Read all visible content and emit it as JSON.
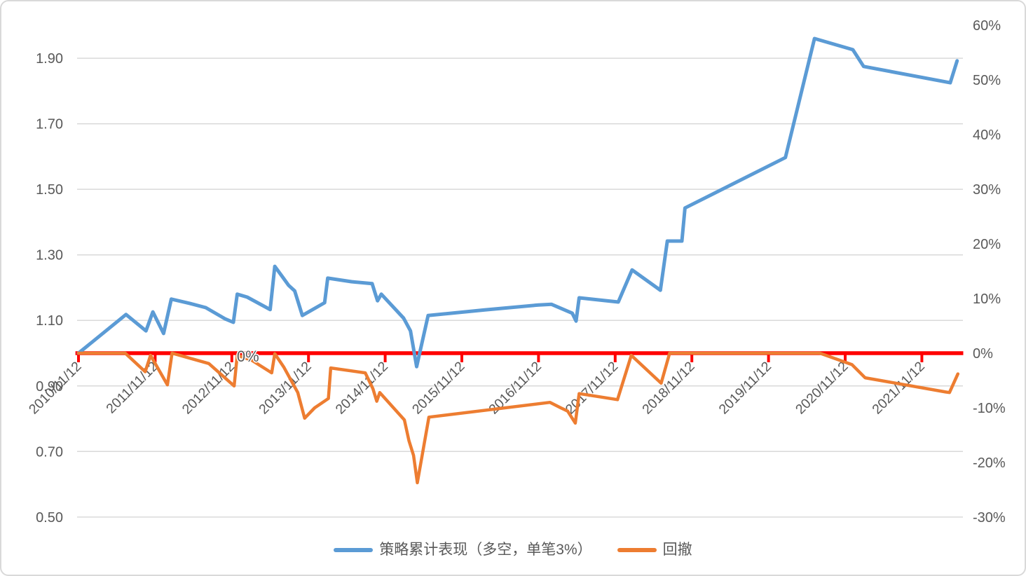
{
  "chart_data": {
    "type": "line",
    "title": "",
    "x_axis": {
      "unit": "years_from_first_tick",
      "tick_labels": [
        "2010/11/12",
        "2011/11/12",
        "2012/11/12",
        "2013/11/12",
        "2014/11/12",
        "2015/11/12",
        "2016/11/12",
        "2017/11/12",
        "2018/11/12",
        "2019/11/12",
        "2020/11/12",
        "2021/11/12"
      ],
      "axis_color": "#FF0000"
    },
    "left_axis": {
      "tick_values": [
        1.9,
        1.7,
        1.5,
        1.3,
        1.1,
        0.9,
        0.7,
        0.5
      ],
      "tick_labels": [
        "1.90",
        "1.70",
        "1.50",
        "1.30",
        "1.10",
        "0.90",
        "0.70",
        "0.50"
      ],
      "range": [
        0.5,
        2.0
      ]
    },
    "right_axis": {
      "unit": "percent",
      "tick_values": [
        60,
        50,
        40,
        30,
        20,
        10,
        0,
        -10,
        -20,
        -30
      ],
      "tick_labels": [
        "60%",
        "50%",
        "40%",
        "30%",
        "20%",
        "10%",
        "0%",
        "-10%",
        "-20%",
        "-30%"
      ],
      "range": [
        -30,
        60
      ]
    },
    "grid": true,
    "gridline_color": "#d9d9d9",
    "legend_position": "bottom",
    "series": [
      {
        "name": "策略累计表现（多空，单笔3%）",
        "axis": "left",
        "color": "#5B9BD5",
        "width": 5,
        "points": [
          [
            0,
            1.0
          ],
          [
            0.62,
            1.118
          ],
          [
            0.88,
            1.068
          ],
          [
            0.97,
            1.126
          ],
          [
            1.11,
            1.06
          ],
          [
            1.21,
            1.165
          ],
          [
            1.45,
            1.152
          ],
          [
            1.66,
            1.139
          ],
          [
            1.91,
            1.105
          ],
          [
            2.02,
            1.094
          ],
          [
            2.07,
            1.18
          ],
          [
            2.2,
            1.171
          ],
          [
            2.5,
            1.133
          ],
          [
            2.56,
            1.265
          ],
          [
            2.66,
            1.233
          ],
          [
            2.74,
            1.207
          ],
          [
            2.82,
            1.19
          ],
          [
            2.92,
            1.115
          ],
          [
            3.21,
            1.154
          ],
          [
            3.25,
            1.229
          ],
          [
            3.56,
            1.218
          ],
          [
            3.83,
            1.212
          ],
          [
            3.87,
            1.182
          ],
          [
            3.9,
            1.16
          ],
          [
            3.95,
            1.18
          ],
          [
            4.24,
            1.107
          ],
          [
            4.33,
            1.068
          ],
          [
            4.41,
            0.959
          ],
          [
            4.56,
            1.115
          ],
          [
            5.3,
            1.132
          ],
          [
            6.0,
            1.147
          ],
          [
            6.17,
            1.149
          ],
          [
            6.44,
            1.122
          ],
          [
            6.49,
            1.098
          ],
          [
            6.53,
            1.169
          ],
          [
            7.04,
            1.156
          ],
          [
            7.22,
            1.254
          ],
          [
            7.59,
            1.192
          ],
          [
            7.68,
            1.342
          ],
          [
            7.87,
            1.342
          ],
          [
            7.91,
            1.443
          ],
          [
            9.22,
            1.597
          ],
          [
            9.6,
            1.96
          ],
          [
            10.1,
            1.926
          ],
          [
            10.24,
            1.875
          ],
          [
            11.37,
            1.825
          ],
          [
            11.46,
            1.892
          ]
        ]
      },
      {
        "name": "回撤",
        "axis": "right",
        "color": "#ED7D31",
        "width": 4.5,
        "points": [
          [
            0,
            0
          ],
          [
            0.61,
            0
          ],
          [
            0.87,
            -3.4
          ],
          [
            0.94,
            -0.4
          ],
          [
            1.16,
            -5.8
          ],
          [
            1.22,
            0
          ],
          [
            1.7,
            -1.9
          ],
          [
            2.03,
            -6.0
          ],
          [
            2.07,
            -0.4
          ],
          [
            2.26,
            -1.3
          ],
          [
            2.52,
            -3.6
          ],
          [
            2.56,
            -0.1
          ],
          [
            2.68,
            -2.6
          ],
          [
            2.77,
            -4.9
          ],
          [
            2.86,
            -7.2
          ],
          [
            2.95,
            -11.9
          ],
          [
            3.08,
            -10.0
          ],
          [
            3.26,
            -8.3
          ],
          [
            3.29,
            -2.7
          ],
          [
            3.74,
            -3.6
          ],
          [
            3.84,
            -6.5
          ],
          [
            3.89,
            -8.8
          ],
          [
            3.93,
            -7.2
          ],
          [
            4.25,
            -12.2
          ],
          [
            4.31,
            -16.0
          ],
          [
            4.37,
            -18.7
          ],
          [
            4.42,
            -23.7
          ],
          [
            4.57,
            -11.7
          ],
          [
            6.15,
            -9.0
          ],
          [
            6.29,
            -10.0
          ],
          [
            6.38,
            -10.6
          ],
          [
            6.48,
            -12.8
          ],
          [
            6.53,
            -7.4
          ],
          [
            7.03,
            -8.5
          ],
          [
            7.21,
            -0.4
          ],
          [
            7.6,
            -5.5
          ],
          [
            7.71,
            0
          ],
          [
            9.67,
            0
          ],
          [
            10.09,
            -2.1
          ],
          [
            10.26,
            -4.5
          ],
          [
            11.31,
            -7.1
          ],
          [
            11.36,
            -7.2
          ],
          [
            11.47,
            -3.8
          ]
        ]
      },
      {
        "name": "zero-baseline",
        "axis": "right",
        "color": "#FF0000",
        "width": 5.5,
        "points": [
          [
            -0.04,
            0
          ],
          [
            11.54,
            0
          ]
        ]
      }
    ],
    "annotations": [
      {
        "text": "0%",
        "x": 2.21,
        "y_right_pct": 0
      }
    ]
  },
  "legend": {
    "items": [
      {
        "label": "策略累计表现（多空，单笔3%）",
        "color": "#5B9BD5"
      },
      {
        "label": "回撤",
        "color": "#ED7D31"
      }
    ]
  },
  "colors": {
    "background": "#ffffff",
    "border": "#d9d9d9",
    "axis_text": "#595959",
    "zero_line": "#FF0000"
  }
}
